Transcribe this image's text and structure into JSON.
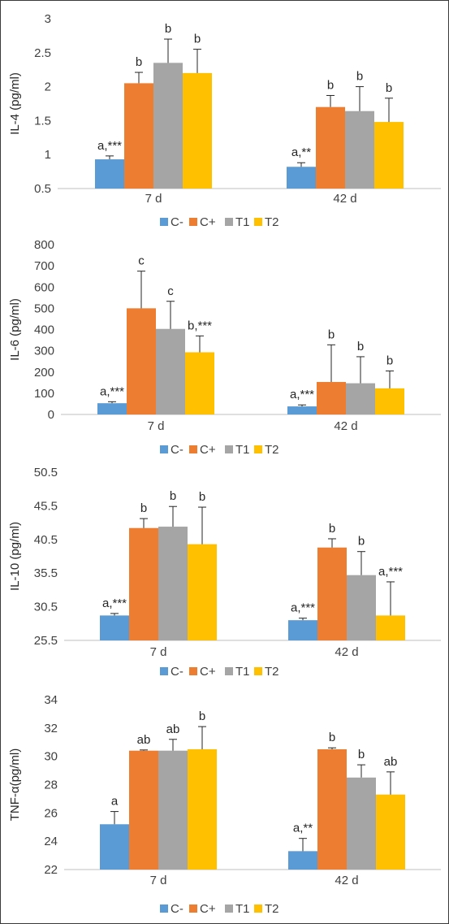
{
  "colors": {
    "C-": "#5b9bd5",
    "C+": "#ed7d31",
    "T1": "#a5a5a5",
    "T2": "#ffc000"
  },
  "chart_data": [
    {
      "type": "bar",
      "ylabel": "IL-4 (pg/ml)",
      "categories": [
        "7 d",
        "42 d"
      ],
      "ylim": [
        0.5,
        3
      ],
      "yticks": [
        "0.5",
        "1",
        "1.5",
        "2",
        "2.5",
        "3"
      ],
      "legend_position": "bottom",
      "series": [
        {
          "name": "C-",
          "values": [
            0.93,
            0.82
          ],
          "errors": [
            0.05,
            0.06
          ],
          "labels": [
            "a,***",
            "a,**"
          ]
        },
        {
          "name": "C+",
          "values": [
            2.05,
            1.7
          ],
          "errors": [
            0.16,
            0.17
          ],
          "labels": [
            "b",
            "b"
          ]
        },
        {
          "name": "T1",
          "values": [
            2.35,
            1.64
          ],
          "errors": [
            0.35,
            0.36
          ],
          "labels": [
            "b",
            "b"
          ]
        },
        {
          "name": "T2",
          "values": [
            2.2,
            1.48
          ],
          "errors": [
            0.35,
            0.35
          ],
          "labels": [
            "b",
            "b"
          ]
        }
      ]
    },
    {
      "type": "bar",
      "ylabel": "IL-6 (pg/ml)",
      "categories": [
        "7 d",
        "42 d"
      ],
      "ylim": [
        0,
        800
      ],
      "yticks": [
        "0",
        "100",
        "200",
        "300",
        "400",
        "500",
        "600",
        "700",
        "800"
      ],
      "legend_position": "bottom",
      "series": [
        {
          "name": "C-",
          "values": [
            53,
            38
          ],
          "errors": [
            7,
            7
          ],
          "labels": [
            "a,***",
            "a,***"
          ]
        },
        {
          "name": "C+",
          "values": [
            500,
            153
          ],
          "errors": [
            175,
            175
          ],
          "labels": [
            "c",
            "b"
          ]
        },
        {
          "name": "T1",
          "values": [
            403,
            147
          ],
          "errors": [
            130,
            125
          ],
          "labels": [
            "c",
            "b"
          ]
        },
        {
          "name": "T2",
          "values": [
            293,
            123
          ],
          "errors": [
            77,
            82
          ],
          "labels": [
            "b,***",
            "b"
          ]
        }
      ]
    },
    {
      "type": "bar",
      "ylabel": "IL-10 (pg/ml)",
      "categories": [
        "7 d",
        "42 d"
      ],
      "ylim": [
        25.5,
        50.5
      ],
      "yticks": [
        "25.5",
        "30.5",
        "35.5",
        "40.5",
        "45.5",
        "50.5"
      ],
      "legend_position": "bottom",
      "series": [
        {
          "name": "C-",
          "values": [
            29.2,
            28.5
          ],
          "errors": [
            0.3,
            0.3
          ],
          "labels": [
            "a,***",
            "a,***"
          ]
        },
        {
          "name": "C+",
          "values": [
            42.2,
            39.3
          ],
          "errors": [
            1.4,
            1.3
          ],
          "labels": [
            "b",
            "b"
          ]
        },
        {
          "name": "T1",
          "values": [
            42.4,
            35.2
          ],
          "errors": [
            3.0,
            3.5
          ],
          "labels": [
            "b",
            "b"
          ]
        },
        {
          "name": "T2",
          "values": [
            39.8,
            29.2
          ],
          "errors": [
            5.5,
            5.0
          ],
          "labels": [
            "b",
            "a,***"
          ]
        }
      ]
    },
    {
      "type": "bar",
      "ylabel": "TNF-α(pg/ml)",
      "categories": [
        "7 d",
        "42 d"
      ],
      "ylim": [
        22,
        34
      ],
      "yticks": [
        "22",
        "24",
        "26",
        "28",
        "30",
        "32",
        "34"
      ],
      "legend_position": "bottom",
      "series": [
        {
          "name": "C-",
          "values": [
            25.2,
            23.3
          ],
          "errors": [
            0.9,
            0.9
          ],
          "labels": [
            "a",
            "a,**"
          ]
        },
        {
          "name": "C+",
          "values": [
            30.4,
            30.5
          ],
          "errors": [
            0.05,
            0.1
          ],
          "labels": [
            "ab",
            "b"
          ]
        },
        {
          "name": "T1",
          "values": [
            30.4,
            28.5
          ],
          "errors": [
            0.8,
            0.9
          ],
          "labels": [
            "ab",
            "b"
          ]
        },
        {
          "name": "T2",
          "values": [
            30.5,
            27.3
          ],
          "errors": [
            1.6,
            1.6
          ],
          "labels": [
            "b",
            "ab"
          ]
        }
      ]
    }
  ]
}
